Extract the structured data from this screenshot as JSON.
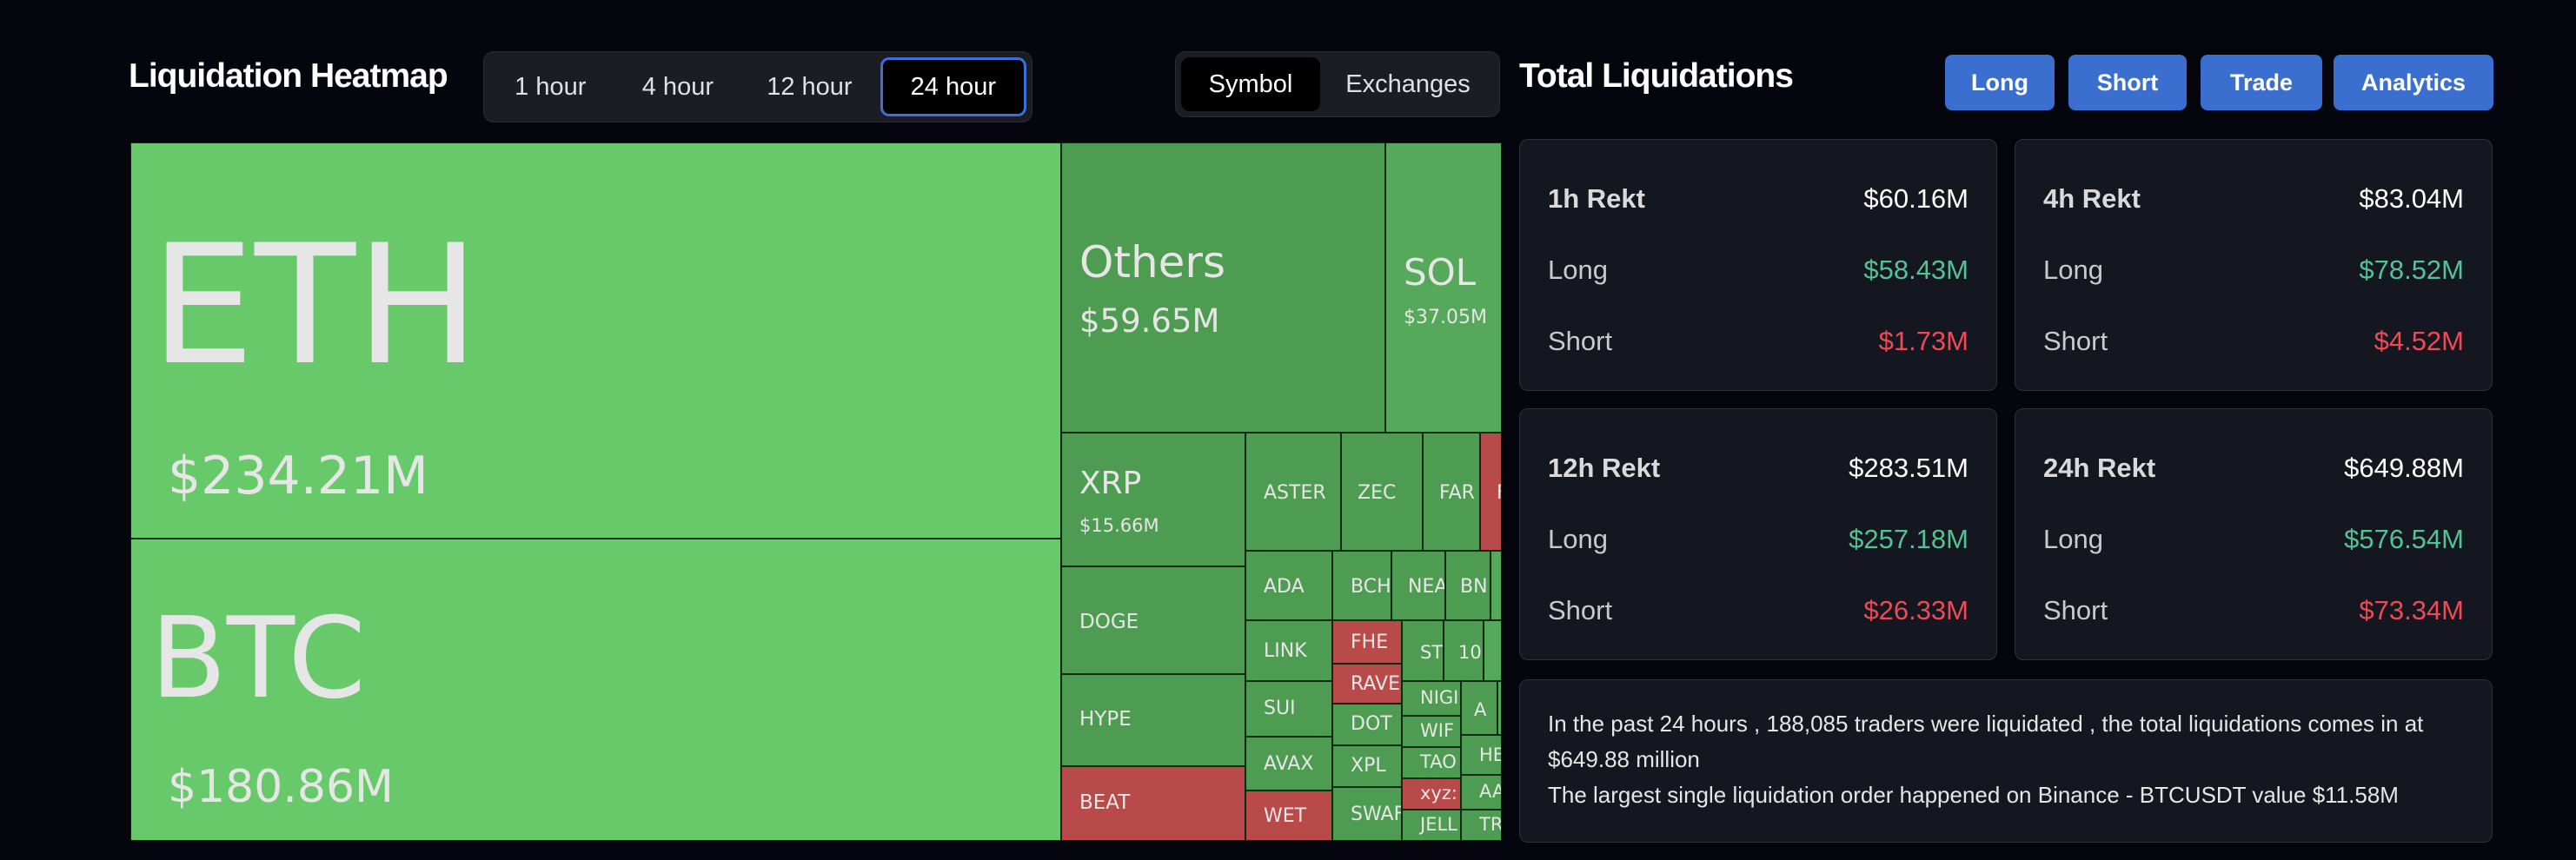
{
  "heatmap": {
    "title": "Liquidation Heatmap",
    "time_tabs": [
      "1 hour",
      "4 hour",
      "12 hour",
      "24 hour"
    ],
    "time_active": "24 hour",
    "view_tabs": [
      "Symbol",
      "Exchanges"
    ],
    "view_active": "Symbol"
  },
  "treemap": {
    "eth": {
      "symbol": "ETH",
      "value": "$234.21M"
    },
    "btc": {
      "symbol": "BTC",
      "value": "$180.86M"
    },
    "others": {
      "symbol": "Others",
      "value": "$59.65M"
    },
    "sol": {
      "symbol": "SOL",
      "value": "$37.05M"
    },
    "xrp": {
      "symbol": "XRP",
      "value": "$15.66M"
    },
    "small": {
      "aster": "ASTER",
      "zec": "ZEC",
      "far": "FAR",
      "ftail": "F",
      "doge": "DOGE",
      "ada": "ADA",
      "bch": "BCH",
      "nea": "NEA",
      "bn": "BN",
      "link": "LINK",
      "fhe": "FHE",
      "st": "ST",
      "n10": "10",
      "hype": "HYPE",
      "sui": "SUI",
      "rave": "RAVE",
      "nigi": "NIGI",
      "a": "A",
      "wif": "WIF",
      "dot": "DOT",
      "tao": "TAO",
      "he": "HE",
      "avax": "AVAX",
      "xpl": "XPL",
      "xyz": "xyz:",
      "beat": "BEAT",
      "wet": "WET",
      "aa": "AA",
      "swap": "SWAF",
      "jell": "JELL",
      "tr": "TR"
    }
  },
  "totals": {
    "title": "Total Liquidations",
    "buttons": [
      "Long",
      "Short",
      "Trade",
      "Analytics"
    ],
    "cards": [
      {
        "title": "1h Rekt",
        "total": "$60.16M",
        "long_label": "Long",
        "long": "$58.43M",
        "short_label": "Short",
        "short": "$1.73M"
      },
      {
        "title": "4h Rekt",
        "total": "$83.04M",
        "long_label": "Long",
        "long": "$78.52M",
        "short_label": "Short",
        "short": "$4.52M"
      },
      {
        "title": "12h Rekt",
        "total": "$283.51M",
        "long_label": "Long",
        "long": "$257.18M",
        "short_label": "Short",
        "short": "$26.33M"
      },
      {
        "title": "24h Rekt",
        "total": "$649.88M",
        "long_label": "Long",
        "long": "$576.54M",
        "short_label": "Short",
        "short": "$73.34M"
      }
    ],
    "summary_line1": "In the past 24 hours , 188,085 traders were liquidated , the total liquidations comes in at $649.88 million",
    "summary_line2": "The largest single liquidation order happened on Binance - BTCUSDT value $11.58M"
  },
  "colors": {
    "background": "#05050d",
    "tile_green_light": "#67c96a",
    "tile_green": "#56a95a",
    "tile_red": "#b84a4a",
    "accent_blue": "#3a6fd0",
    "long_green": "#56c293",
    "short_red": "#ef4a55"
  }
}
